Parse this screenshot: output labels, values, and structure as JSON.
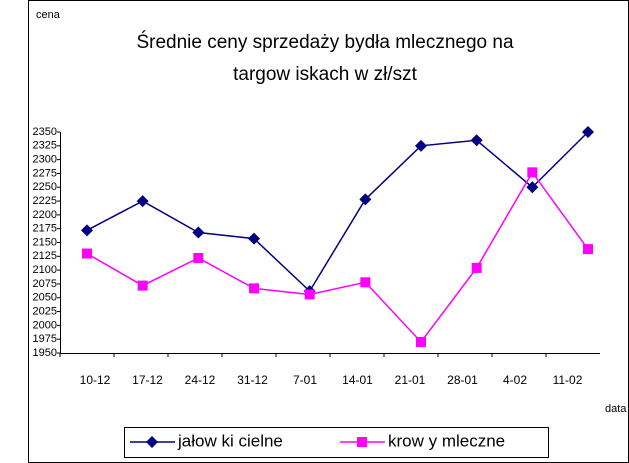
{
  "chart_data": {
    "type": "line",
    "title": "Średnie ceny sprzedaży bydła mlecznego na",
    "subtitle": "targow iskach w  zł/szt",
    "y_label": "cena",
    "x_label": "data",
    "categories": [
      "10-12",
      "17-12",
      "24-12",
      "31-12",
      "7-01",
      "14-01",
      "21-01",
      "28-01",
      "4-02",
      "11-02"
    ],
    "series": [
      {
        "name": "jałow ki cielne",
        "color": "#000080",
        "marker": "diamond",
        "values": [
          2172,
          2225,
          2168,
          2157,
          2062,
          2228,
          2325,
          2335,
          2250,
          2350
        ]
      },
      {
        "name": "krow y mleczne",
        "color": "#ff00ff",
        "marker": "square",
        "values": [
          2130,
          2072,
          2122,
          2067,
          2056,
          2078,
          1970,
          2104,
          2277,
          2138
        ]
      }
    ],
    "ylim": [
      1950,
      2350
    ],
    "yticks": [
      1950,
      1975,
      2000,
      2025,
      2050,
      2075,
      2100,
      2125,
      2150,
      2175,
      2200,
      2225,
      2250,
      2275,
      2300,
      2325,
      2350
    ],
    "grid": false,
    "legend": "bottom"
  }
}
